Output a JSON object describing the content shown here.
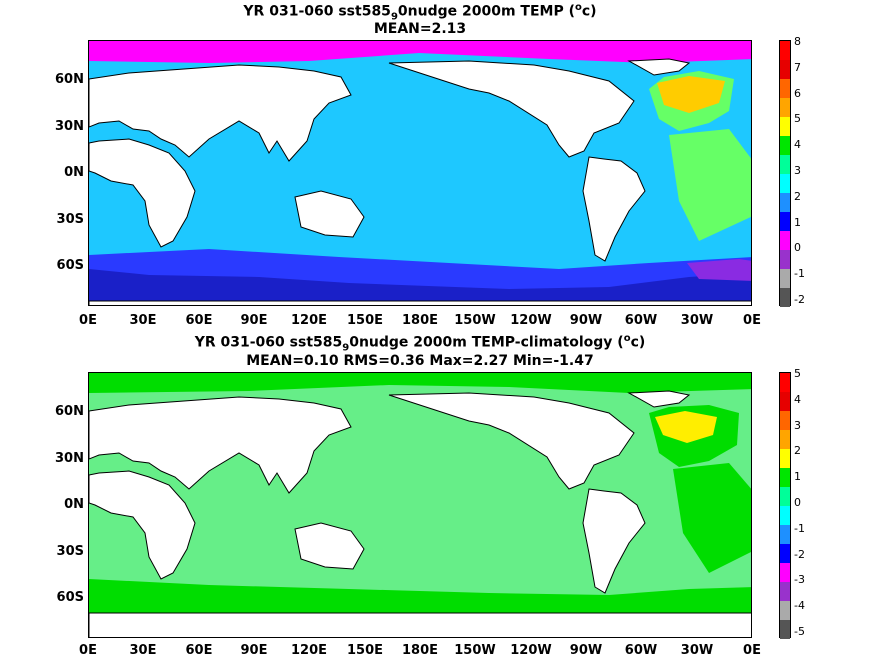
{
  "panel1": {
    "title_prefix": "YR 031-060 sst585",
    "title_sub": "9",
    "title_mid": "0nudge 2000m TEMP (",
    "title_sup": "o",
    "title_suffix": "c)",
    "stats": "MEAN=2.13",
    "colorbar_ticks": [
      "8",
      "7",
      "6",
      "5",
      "4",
      "3",
      "2",
      "1",
      "0",
      "-1",
      "-2"
    ]
  },
  "panel2": {
    "title_prefix": "YR 031-060 sst585",
    "title_sub": "9",
    "title_mid": "0nudge 2000m TEMP-climatology (",
    "title_sup": "o",
    "title_suffix": "c)",
    "stats": "MEAN=0.10   RMS=0.36   Max=2.27   Min=-1.47",
    "colorbar_ticks": [
      "5",
      "4",
      "3",
      "2",
      "1",
      "0",
      "-1",
      "-2",
      "-3",
      "-4",
      "-5"
    ]
  },
  "lat_labels": [
    "60N",
    "30N",
    "0N",
    "30S",
    "60S"
  ],
  "lon_labels": [
    "0E",
    "30E",
    "60E",
    "90E",
    "120E",
    "150E",
    "180E",
    "150W",
    "120W",
    "90W",
    "60W",
    "30W",
    "0E"
  ],
  "colorbar_colors": [
    "#ff0000",
    "#e60000",
    "#ff6600",
    "#ffa500",
    "#ffff00",
    "#00e600",
    "#00ff99",
    "#00ffff",
    "#1e90ff",
    "#0000ff",
    "#ff00ff",
    "#9932cc",
    "#aaaaaa",
    "#555555"
  ],
  "map_colors": {
    "land": "#ffffff",
    "panel1_ocean": "#1ec8ff",
    "panel1_warm": "#ffcc00",
    "panel1_green": "#66ff66",
    "panel1_cold": "#2a3aff",
    "panel1_deep": "#8a2be2",
    "panel2_ocean": "#66ee88",
    "panel2_warm": "#ffee00",
    "panel2_green": "#00dd00"
  }
}
